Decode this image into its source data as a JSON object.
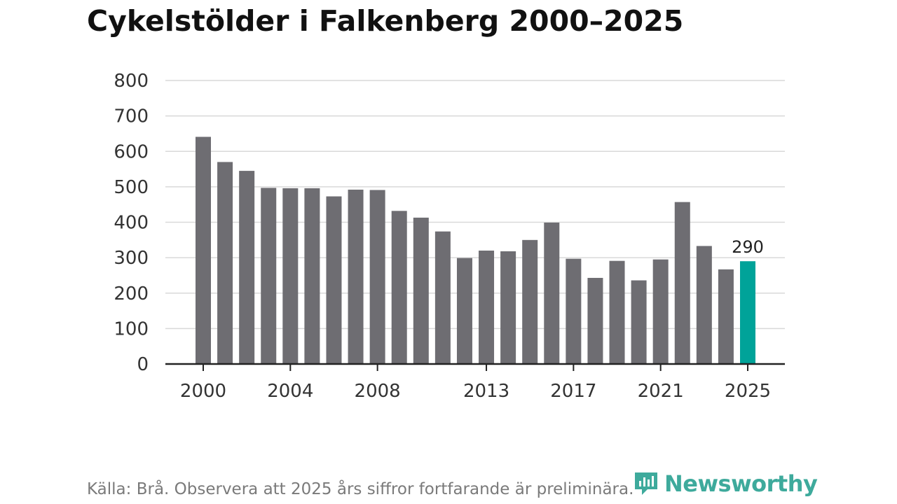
{
  "title": "Cykelstölder i Falkenberg 2000–2025",
  "source": "Källa: Brå. Observera att 2025 års siffror fortfarande är preliminära.",
  "brand": {
    "name": "Newsworthy",
    "icon": "newsworthy-logo-icon",
    "color": "#3eaa9c"
  },
  "colors": {
    "bar": "#6e6d72",
    "highlight": "#00a399",
    "grid": "#d9d9d9",
    "axis": "#222222",
    "text": "#333333"
  },
  "chart_data": {
    "type": "bar",
    "title": "Cykelstölder i Falkenberg 2000–2025",
    "xlabel": "",
    "ylabel": "",
    "ylim": [
      0,
      800
    ],
    "yticks": [
      0,
      100,
      200,
      300,
      400,
      500,
      600,
      700,
      800
    ],
    "xticks": [
      2000,
      2004,
      2008,
      2013,
      2017,
      2021,
      2025
    ],
    "grid": true,
    "categories": [
      2000,
      2001,
      2002,
      2003,
      2004,
      2005,
      2006,
      2007,
      2008,
      2009,
      2010,
      2011,
      2012,
      2013,
      2014,
      2015,
      2016,
      2017,
      2018,
      2019,
      2020,
      2021,
      2022,
      2023,
      2024,
      2025
    ],
    "values": [
      641,
      570,
      545,
      497,
      496,
      496,
      473,
      492,
      491,
      432,
      413,
      374,
      299,
      320,
      318,
      350,
      399,
      297,
      243,
      291,
      236,
      295,
      457,
      333,
      267,
      290
    ],
    "highlight": 2025,
    "annotations": [
      {
        "category": 2025,
        "label": "290"
      }
    ]
  }
}
